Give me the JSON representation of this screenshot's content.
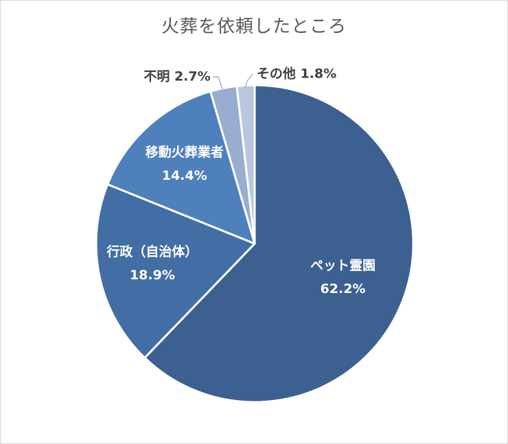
{
  "chart_data": {
    "type": "pie",
    "title": "火葬を依頼したところ",
    "slices": [
      {
        "name": "ペット霊園",
        "value": 62.2,
        "label": "62.2%",
        "color": "#3c6090"
      },
      {
        "name": "行政（自治体）",
        "value": 18.9,
        "label": "18.9%",
        "color": "#426ea5"
      },
      {
        "name": "移動火葬業者",
        "value": 14.4,
        "label": "14.4%",
        "color": "#4e80bc"
      },
      {
        "name": "不明",
        "value": 2.7,
        "label": "2.7%",
        "color": "#98adcf"
      },
      {
        "name": "その他",
        "value": 1.8,
        "label": "1.8%",
        "color": "#b9c6de"
      }
    ],
    "start_angle_deg": 0,
    "direction": "clockwise",
    "slice_border_color": "#ffffff",
    "legend": "none",
    "label_position": [
      "inside",
      "inside",
      "inside",
      "outside",
      "outside"
    ]
  }
}
